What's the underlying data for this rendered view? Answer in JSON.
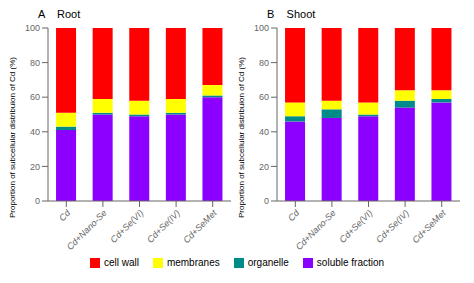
{
  "chart_data": [
    {
      "type": "bar",
      "title": "A    Root",
      "ylabel": "Proportion of subcellular distribuion of Cd (%)",
      "categories": [
        "Cd",
        "Cd+Nano-Se",
        "Cd+Se(VI)",
        "Cd+Se(IV)",
        "Cd+SeMet"
      ],
      "series": [
        {
          "name": "soluble fraction",
          "color": "#8B00FF",
          "values": [
            41,
            50,
            49,
            50,
            60
          ]
        },
        {
          "name": "organelle",
          "color": "#008B8B",
          "values": [
            2,
            1,
            1,
            1,
            1
          ]
        },
        {
          "name": "membranes",
          "color": "#FFFF00",
          "values": [
            8,
            8,
            8,
            8,
            6
          ]
        },
        {
          "name": "cell wall",
          "color": "#FF0000",
          "values": [
            49,
            41,
            42,
            41,
            33
          ]
        }
      ],
      "ylim": [
        0,
        100
      ],
      "yticks": [
        0,
        20,
        40,
        60,
        80,
        100
      ],
      "stacked": true,
      "legend": "bottom"
    },
    {
      "type": "bar",
      "title": "B    Shoot",
      "ylabel": "Proportion of subcellular distribuion of Cd (%)",
      "categories": [
        "Cd",
        "Cd+Nano-Se",
        "Cd+Se(VI)",
        "Cd+Se(IV)",
        "Cd+SeMet"
      ],
      "series": [
        {
          "name": "soluble fraction",
          "color": "#8B00FF",
          "values": [
            46,
            48,
            49,
            54,
            57
          ]
        },
        {
          "name": "organelle",
          "color": "#008B8B",
          "values": [
            3,
            5,
            1,
            4,
            2
          ]
        },
        {
          "name": "membranes",
          "color": "#FFFF00",
          "values": [
            8,
            5,
            7,
            6,
            5
          ]
        },
        {
          "name": "cell wall",
          "color": "#FF0000",
          "values": [
            43,
            42,
            43,
            36,
            36
          ]
        }
      ],
      "ylim": [
        0,
        100
      ],
      "yticks": [
        0,
        20,
        40,
        60,
        80,
        100
      ],
      "stacked": true,
      "legend": "bottom"
    }
  ]
}
